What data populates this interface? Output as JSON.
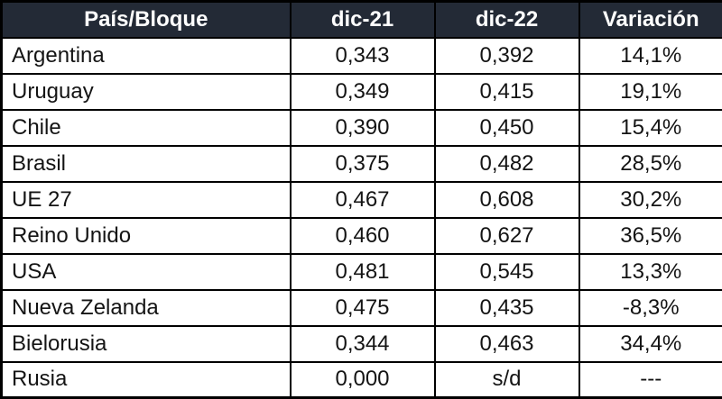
{
  "chart_data": {
    "type": "table",
    "title": "",
    "columns": [
      "País/Bloque",
      "dic-21",
      "dic-22",
      "Variación"
    ],
    "rows": [
      [
        "Argentina",
        "0,343",
        "0,392",
        "14,1%"
      ],
      [
        "Uruguay",
        "0,349",
        "0,415",
        "19,1%"
      ],
      [
        "Chile",
        "0,390",
        "0,450",
        "15,4%"
      ],
      [
        "Brasil",
        "0,375",
        "0,482",
        "28,5%"
      ],
      [
        "UE 27",
        "0,467",
        "0,608",
        "30,2%"
      ],
      [
        "Reino Unido",
        "0,460",
        "0,627",
        "36,5%"
      ],
      [
        "USA",
        "0,481",
        "0,545",
        "13,3%"
      ],
      [
        "Nueva Zelanda",
        "0,475",
        "0,435",
        "-8,3%"
      ],
      [
        "Bielorusia",
        "0,344",
        "0,463",
        "34,4%"
      ],
      [
        "Rusia",
        "0,000",
        "s/d",
        "---"
      ]
    ],
    "colors": {
      "header_bg": "#232A36",
      "header_text": "#FFFFFF",
      "border": "#000000",
      "row_bg": "#FFFFFF",
      "body_text": "#141414"
    }
  }
}
